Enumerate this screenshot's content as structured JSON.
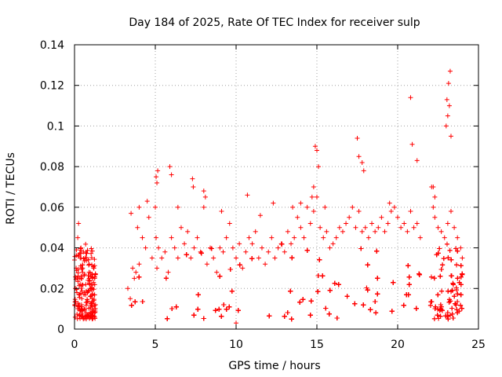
{
  "chart_data": {
    "type": "scatter",
    "title": "Day 184 of 2025, Rate Of TEC Index for receiver sulp",
    "xlabel": "GPS time / hours",
    "ylabel": "ROTI / TECUs",
    "xlim": [
      0,
      25
    ],
    "ylim": [
      0,
      0.14
    ],
    "x_ticks": [
      0,
      5,
      10,
      15,
      20,
      25
    ],
    "x_tick_labels": [
      "0",
      "5",
      "10",
      "15",
      "20",
      "25"
    ],
    "y_ticks": [
      0,
      0.02,
      0.04,
      0.06,
      0.08,
      0.1,
      0.12,
      0.14
    ],
    "y_tick_labels": [
      "0",
      "0.02",
      "0.04",
      "0.06",
      "0.08",
      "0.1",
      "0.12",
      "0.14"
    ],
    "grid": true,
    "marker": "+",
    "color": "#ff0000",
    "series": [
      {
        "name": "ROTI",
        "x": [
          0.02,
          0.05,
          0.1,
          0.15,
          0.2,
          0.25,
          0.3,
          0.35,
          0.4,
          0.45,
          0.5,
          0.55,
          0.6,
          0.7,
          0.8,
          0.9,
          1.0,
          1.1,
          1.2,
          1.3,
          0.3,
          0.35,
          0.4,
          0.5,
          0.6,
          0.9,
          1.1,
          1.25,
          3.3,
          3.45,
          3.6,
          3.7,
          3.8,
          3.9,
          4.0,
          4.2,
          4.4,
          4.6,
          4.8,
          5.0,
          5.05,
          5.1,
          5.2,
          5.4,
          5.6,
          5.8,
          6.0,
          6.2,
          6.4,
          6.6,
          6.8,
          7.0,
          7.2,
          7.4,
          7.6,
          7.8,
          8.0,
          8.2,
          8.4,
          8.6,
          8.8,
          9.0,
          9.2,
          9.4,
          9.6,
          9.8,
          10.0,
          10.2,
          10.4,
          10.6,
          10.8,
          11.0,
          11.2,
          11.4,
          11.6,
          11.8,
          12.0,
          12.2,
          12.4,
          12.6,
          12.8,
          13.0,
          13.2,
          13.4,
          13.6,
          13.8,
          14.0,
          14.2,
          14.4,
          14.6,
          14.8,
          15.0,
          15.2,
          15.4,
          15.6,
          15.8,
          16.0,
          16.2,
          16.4,
          16.6,
          16.8,
          17.0,
          17.2,
          17.4,
          17.6,
          17.8,
          18.0,
          18.2,
          18.4,
          18.6,
          18.8,
          19.0,
          19.2,
          19.4,
          19.6,
          19.8,
          20.0,
          20.2,
          20.4,
          20.6,
          20.8,
          21.0,
          21.2,
          21.4,
          22.1,
          22.2,
          22.3,
          22.5,
          22.7,
          22.9,
          23.1,
          23.3,
          23.5,
          23.7,
          23.9,
          24.0,
          5.05,
          5.1,
          5.15,
          5.9,
          6.0,
          7.3,
          7.35,
          8.0,
          8.1,
          9.1,
          10.7,
          11.5,
          12.3,
          13.5,
          14.7,
          14.8,
          14.9,
          15.0,
          17.5,
          17.6,
          17.8,
          17.9,
          20.8,
          21.2,
          23.0,
          23.1,
          23.2,
          23.3,
          23.25,
          23.15,
          23.05,
          22.2,
          22.3,
          15.5,
          15.1,
          14.0,
          10.0,
          19.5,
          20.9,
          4.5,
          4.0,
          6.4,
          3.5
        ],
        "y": [
          0.012,
          0.02,
          0.03,
          0.018,
          0.045,
          0.052,
          0.025,
          0.035,
          0.04,
          0.015,
          0.028,
          0.038,
          0.01,
          0.022,
          0.018,
          0.025,
          0.02,
          0.015,
          0.03,
          0.012,
          0.012,
          0.022,
          0.035,
          0.03,
          0.018,
          0.028,
          0.02,
          0.025,
          0.02,
          0.015,
          0.03,
          0.025,
          0.028,
          0.05,
          0.032,
          0.045,
          0.04,
          0.055,
          0.035,
          0.06,
          0.045,
          0.03,
          0.04,
          0.035,
          0.038,
          0.028,
          0.045,
          0.04,
          0.035,
          0.05,
          0.042,
          0.048,
          0.035,
          0.04,
          0.045,
          0.038,
          0.06,
          0.032,
          0.04,
          0.035,
          0.028,
          0.04,
          0.038,
          0.045,
          0.052,
          0.04,
          0.035,
          0.042,
          0.03,
          0.038,
          0.045,
          0.042,
          0.048,
          0.035,
          0.04,
          0.032,
          0.038,
          0.045,
          0.035,
          0.04,
          0.042,
          0.038,
          0.048,
          0.042,
          0.045,
          0.055,
          0.05,
          0.045,
          0.06,
          0.052,
          0.058,
          0.065,
          0.05,
          0.045,
          0.048,
          0.04,
          0.042,
          0.045,
          0.05,
          0.048,
          0.052,
          0.055,
          0.06,
          0.05,
          0.058,
          0.048,
          0.05,
          0.045,
          0.052,
          0.048,
          0.05,
          0.055,
          0.048,
          0.052,
          0.058,
          0.06,
          0.055,
          0.05,
          0.052,
          0.048,
          0.058,
          0.05,
          0.052,
          0.045,
          0.07,
          0.06,
          0.055,
          0.05,
          0.048,
          0.045,
          0.052,
          0.058,
          0.05,
          0.045,
          0.04,
          0.035,
          0.075,
          0.072,
          0.078,
          0.08,
          0.076,
          0.074,
          0.07,
          0.068,
          0.065,
          0.058,
          0.066,
          0.056,
          0.062,
          0.06,
          0.065,
          0.07,
          0.09,
          0.088,
          0.094,
          0.085,
          0.082,
          0.078,
          0.114,
          0.083,
          0.1,
          0.105,
          0.11,
          0.095,
          0.127,
          0.121,
          0.113,
          0.07,
          0.065,
          0.06,
          0.08,
          0.062,
          0.003,
          0.062,
          0.091,
          0.063,
          0.06,
          0.06,
          0.057
        ]
      }
    ],
    "segments_min_x": 0.0,
    "segments": [
      {
        "from": 0.0,
        "to": 1.3
      },
      {
        "from": 3.2,
        "to": 21.4
      },
      {
        "from": 22.0,
        "to": 24.0
      }
    ],
    "band_typical_range": [
      0.005,
      0.04
    ]
  }
}
